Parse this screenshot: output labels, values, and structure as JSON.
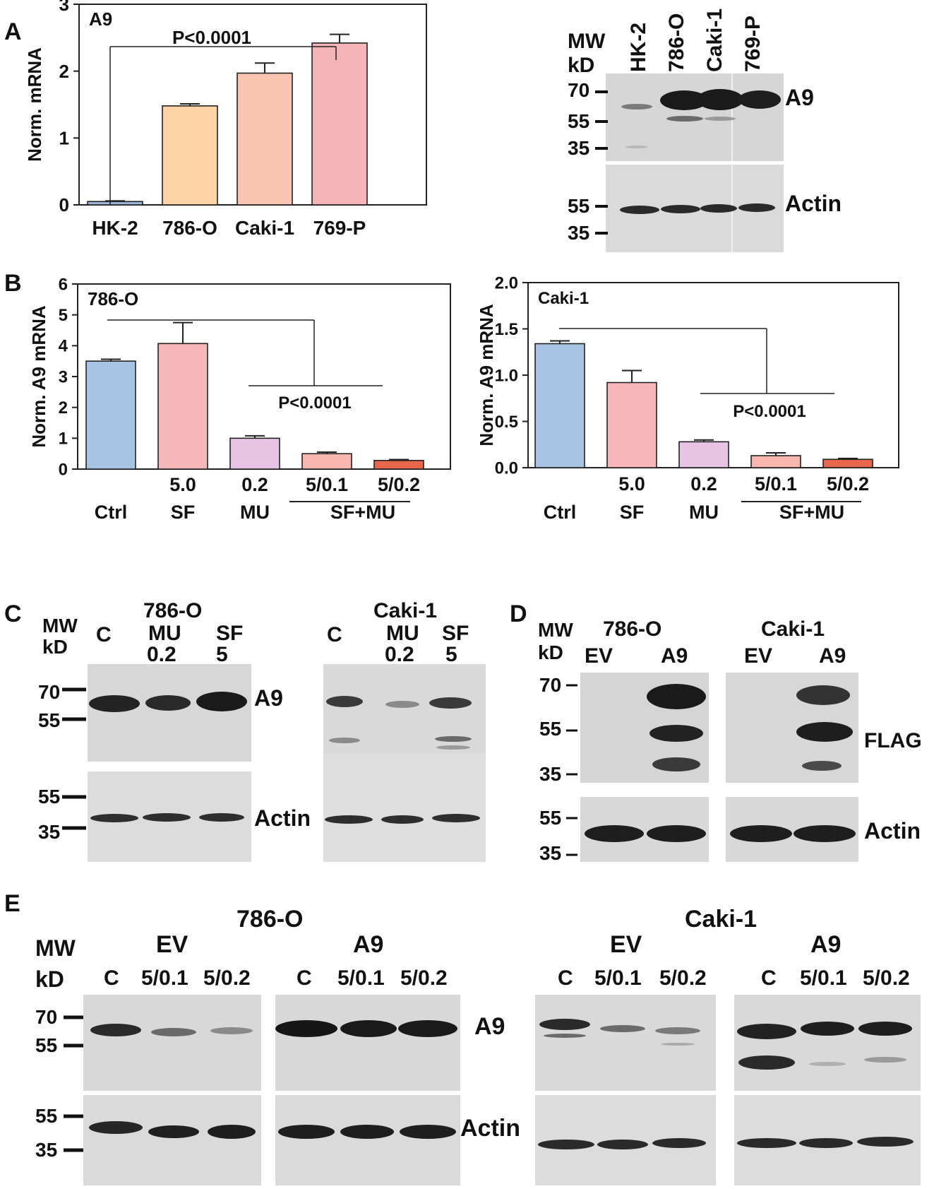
{
  "panel_letters": {
    "a": "A",
    "b": "B",
    "c": "C",
    "d": "D",
    "e": "E"
  },
  "chart_data": [
    {
      "id": "A",
      "type": "bar",
      "title": "A9",
      "ylabel": "Norm. mRNA",
      "xlabel": "",
      "ylim": [
        0,
        3
      ],
      "yticks": [
        "0",
        "1",
        "2",
        "3"
      ],
      "categories": [
        "HK-2",
        "786-O",
        "Caki-1",
        "769-P"
      ],
      "values": [
        0.05,
        1.48,
        1.97,
        2.42
      ],
      "errors": [
        0.01,
        0.03,
        0.15,
        0.13
      ],
      "colors": [
        "#9db5d8",
        "#fbd3a5",
        "#f9c5b0",
        "#f5b5b8"
      ],
      "annotation": "P<0.0001"
    },
    {
      "id": "B1",
      "type": "bar",
      "title": "786-O",
      "ylabel": "Norm. A9 mRNA",
      "xlabel": "",
      "ylim": [
        0,
        6
      ],
      "yticks": [
        "0",
        "1",
        "2",
        "3",
        "4",
        "5",
        "6"
      ],
      "categories": [
        "Ctrl",
        "SF 5.0",
        "MU 0.2",
        "SF+MU 5/0.1",
        "SF+MU 5/0.2"
      ],
      "values": [
        3.5,
        4.07,
        1.0,
        0.5,
        0.28
      ],
      "errors": [
        0.06,
        0.68,
        0.08,
        0.05,
        0.03
      ],
      "colors": [
        "#a9c3e2",
        "#f7b6b8",
        "#e7c4e4",
        "#f8b7ae",
        "#e8664a"
      ],
      "annotation": "P<0.0001",
      "tick_row1": [
        "",
        "5.0",
        "0.2",
        "5/0.1",
        "5/0.2"
      ],
      "tick_row2": [
        "Ctrl",
        "SF",
        "MU",
        "SF+MU",
        ""
      ]
    },
    {
      "id": "B2",
      "type": "bar",
      "title": "Caki-1",
      "ylabel": "Norm. A9 mRNA",
      "xlabel": "",
      "ylim": [
        0,
        2.0
      ],
      "yticks": [
        "0.0",
        "0.5",
        "1.0",
        "1.5",
        "2.0"
      ],
      "categories": [
        "Ctrl",
        "SF 5.0",
        "MU 0.2",
        "SF+MU 5/0.1",
        "SF+MU 5/0.2"
      ],
      "values": [
        1.34,
        0.92,
        0.28,
        0.13,
        0.09
      ],
      "errors": [
        0.03,
        0.13,
        0.02,
        0.03,
        0.01
      ],
      "colors": [
        "#a9c3e2",
        "#f7b6b8",
        "#e7c4e4",
        "#f8b7ae",
        "#e8664a"
      ],
      "annotation": "P<0.0001",
      "tick_row1": [
        "",
        "5.0",
        "0.2",
        "5/0.1",
        "5/0.2"
      ],
      "tick_row2": [
        "Ctrl",
        "SF",
        "MU",
        "SF+MU",
        ""
      ]
    }
  ],
  "blots": {
    "a": {
      "mw_header": [
        "MW",
        "kD"
      ],
      "lanes": [
        "HK-2",
        "786-O",
        "Caki-1",
        "769-P"
      ],
      "top_markers": [
        "70",
        "55",
        "35"
      ],
      "bottom_markers": [
        "55",
        "35"
      ],
      "top_label": "A9",
      "bottom_label": "Actin"
    },
    "c": {
      "mw_header": [
        "MW",
        "kD"
      ],
      "left_title": "786-O",
      "right_title": "Caki-1",
      "left_lanes": [
        "C",
        "MU 0.2",
        "SF 5"
      ],
      "right_lanes": [
        "C",
        "MU 0.2",
        "SF 5"
      ],
      "lane_c": "C",
      "mu_l1": "MU",
      "mu_l2": "0.2",
      "sf_l1": "SF",
      "sf_l2": "5",
      "top_markers": [
        "70",
        "55"
      ],
      "bottom_markers": [
        "55",
        "35"
      ],
      "top_label": "A9",
      "bottom_label": "Actin"
    },
    "d": {
      "mw_header": [
        "MW",
        "kD"
      ],
      "left_title": "786-O",
      "right_title": "Caki-1",
      "lanes": [
        "EV",
        "A9"
      ],
      "top_markers": [
        "70",
        "55",
        "35"
      ],
      "bottom_markers": [
        "55",
        "35"
      ],
      "top_label": "FLAG",
      "bottom_label": "Actin"
    },
    "e": {
      "mw_header": [
        "MW",
        "kD"
      ],
      "left_title": "786-O",
      "right_title": "Caki-1",
      "group_ev": "EV",
      "group_a9": "A9",
      "lanes": [
        "C",
        "5/0.1",
        "5/0.2"
      ],
      "top_markers": [
        "70",
        "55"
      ],
      "bottom_markers": [
        "55",
        "35"
      ],
      "top_label": "A9",
      "bottom_label": "Actin"
    }
  }
}
